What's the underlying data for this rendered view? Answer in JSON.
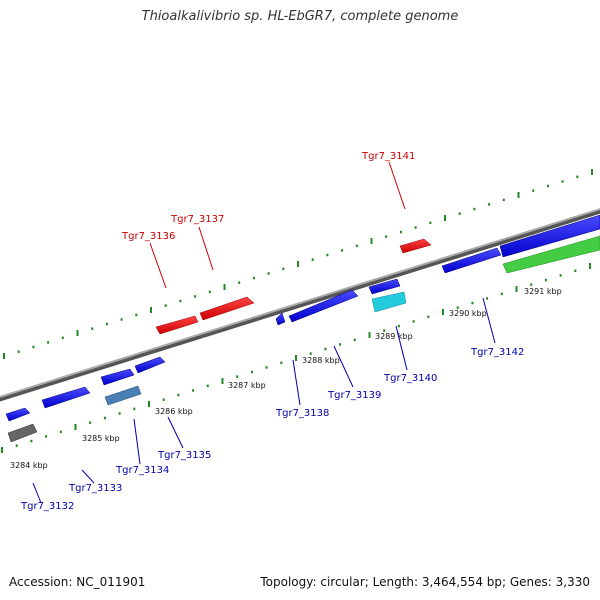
{
  "title": "Thioalkalivibrio sp. HL-EbGR7, complete genome",
  "footer": {
    "accession": "Accession: NC_011901",
    "summary": "Topology: circular; Length: 3,464,554 bp; Genes: 3,330"
  },
  "colors": {
    "highlight": "#ee1111",
    "gene": "#1212e6",
    "backbone": "#888888",
    "tick": "#228822",
    "label_highlight": "#cc0000",
    "label_gene": "#0000aa",
    "rna": "#44cc44",
    "cyan": "#22ccdd",
    "steel": "#4a7fb5",
    "grey": "#666666"
  },
  "scale_labels": [
    "3284 kbp",
    "3285 kbp",
    "3286 kbp",
    "3287 kbp",
    "3288 kbp",
    "3289 kbp",
    "3290 kbp",
    "3291 kbp"
  ],
  "genes": [
    {
      "label": "Tgr7_3132",
      "highlight": false
    },
    {
      "label": "Tgr7_3133",
      "highlight": false
    },
    {
      "label": "Tgr7_3134",
      "highlight": false
    },
    {
      "label": "Tgr7_3135",
      "highlight": false
    },
    {
      "label": "Tgr7_3136",
      "highlight": true
    },
    {
      "label": "Tgr7_3137",
      "highlight": true
    },
    {
      "label": "Tgr7_3138",
      "highlight": false
    },
    {
      "label": "Tgr7_3139",
      "highlight": false
    },
    {
      "label": "Tgr7_3140",
      "highlight": false
    },
    {
      "label": "Tgr7_3141",
      "highlight": true
    },
    {
      "label": "Tgr7_3142",
      "highlight": false
    }
  ]
}
